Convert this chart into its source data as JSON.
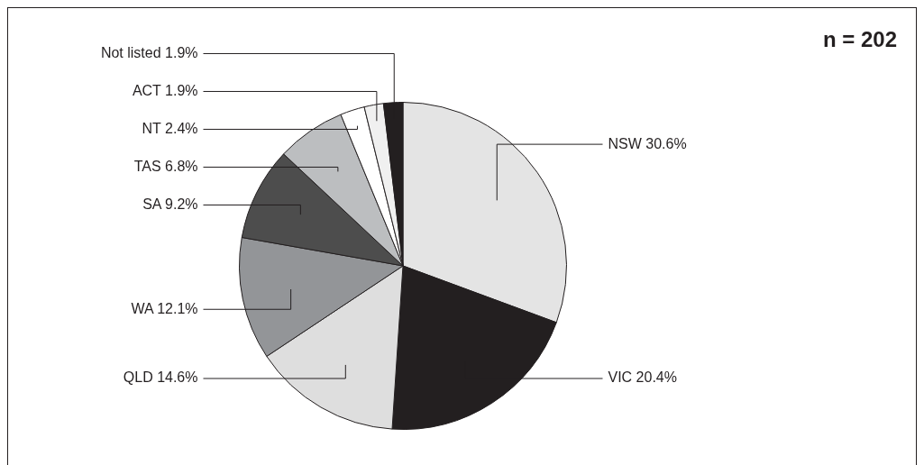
{
  "chart_data": {
    "type": "pie",
    "categories": [
      "NSW 30.6%",
      "VIC 20.4%",
      "QLD 14.6%",
      "WA 12.1%",
      "SA 9.2%",
      "TAS 6.8%",
      "NT 2.4%",
      "ACT 1.9%",
      "Not listed 1.9%"
    ],
    "values": [
      30.6,
      20.4,
      14.6,
      12.1,
      9.2,
      6.8,
      2.4,
      1.9,
      1.9
    ],
    "colors": [
      "#e4e4e4",
      "#231f20",
      "#dedede",
      "#939598",
      "#4d4d4d",
      "#bcbec0",
      "#ffffff",
      "#f0f0f0",
      "#231f20"
    ],
    "annotations": [
      "n = 202"
    ],
    "legend": false
  }
}
